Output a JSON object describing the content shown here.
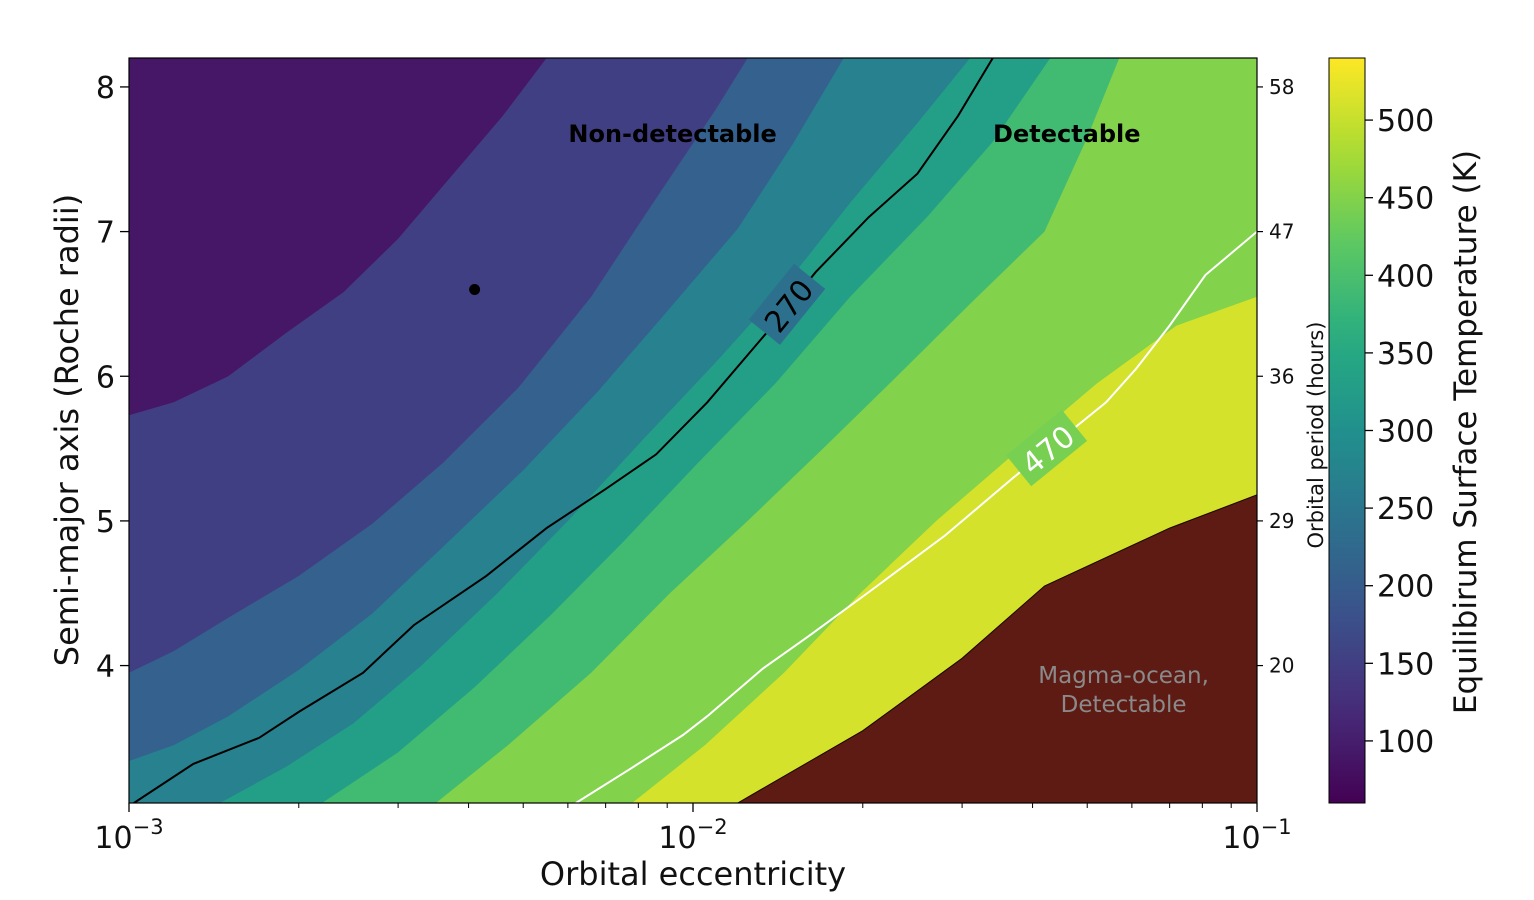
{
  "chart_data": {
    "type": "contour",
    "title": "",
    "xlabel": "Orbital eccentricity",
    "ylabel": "Semi-major axis (Roche radii)",
    "y2label": "Orbital period (hours)",
    "colorbar_label": "Equilibirum Surface Temperature (K)",
    "x_scale": "log",
    "xlim": [
      0.001,
      0.1
    ],
    "ylim": [
      3.05,
      8.2
    ],
    "x_ticks": [
      {
        "value": 0.001,
        "base": "10",
        "exp": "−3"
      },
      {
        "value": 0.01,
        "base": "10",
        "exp": "−2"
      },
      {
        "value": 0.1,
        "base": "10",
        "exp": "−1"
      }
    ],
    "y_ticks": [
      "4",
      "5",
      "6",
      "7",
      "8"
    ],
    "y2_ticks": [
      {
        "a": 4,
        "label": "20"
      },
      {
        "a": 5,
        "label": "29"
      },
      {
        "a": 6,
        "label": "36"
      },
      {
        "a": 7,
        "label": "47"
      },
      {
        "a": 8,
        "label": "58"
      }
    ],
    "colorbar_range": [
      60,
      540
    ],
    "colorbar_ticks": [
      "100",
      "150",
      "200",
      "250",
      "300",
      "350",
      "400",
      "450",
      "500"
    ],
    "colormap": "viridis",
    "magma_color": "#5e1b14",
    "levels": [
      60,
      120,
      180,
      240,
      300,
      360,
      420,
      480,
      540
    ],
    "boundaries": [
      {
        "level": 120,
        "points": [
          [
            0.001,
            5.73
          ],
          [
            0.0012,
            5.82
          ],
          [
            0.0015,
            6.0
          ],
          [
            0.0019,
            6.3
          ],
          [
            0.0024,
            6.58
          ],
          [
            0.003,
            6.95
          ],
          [
            0.0038,
            7.42
          ],
          [
            0.0046,
            7.8
          ],
          [
            0.0055,
            8.2
          ]
        ]
      },
      {
        "level": 180,
        "points": [
          [
            0.001,
            3.95
          ],
          [
            0.0012,
            4.1
          ],
          [
            0.0015,
            4.33
          ],
          [
            0.002,
            4.62
          ],
          [
            0.0027,
            4.98
          ],
          [
            0.0036,
            5.4
          ],
          [
            0.0049,
            5.92
          ],
          [
            0.0066,
            6.55
          ],
          [
            0.0085,
            7.2
          ],
          [
            0.011,
            7.85
          ],
          [
            0.0125,
            8.2
          ]
        ]
      },
      {
        "level": 240,
        "points": [
          [
            0.001,
            3.34
          ],
          [
            0.0012,
            3.45
          ],
          [
            0.0015,
            3.65
          ],
          [
            0.002,
            3.97
          ],
          [
            0.0027,
            4.36
          ],
          [
            0.0036,
            4.82
          ],
          [
            0.005,
            5.35
          ],
          [
            0.0068,
            5.9
          ],
          [
            0.009,
            6.45
          ],
          [
            0.012,
            7.02
          ],
          [
            0.015,
            7.6
          ],
          [
            0.0185,
            8.2
          ]
        ]
      },
      {
        "level": 300,
        "points": [
          [
            0.00145,
            3.05
          ],
          [
            0.0019,
            3.3
          ],
          [
            0.0025,
            3.6
          ],
          [
            0.0033,
            4.0
          ],
          [
            0.0045,
            4.5
          ],
          [
            0.006,
            5.0
          ],
          [
            0.0081,
            5.55
          ],
          [
            0.011,
            6.1
          ],
          [
            0.0145,
            6.62
          ],
          [
            0.019,
            7.2
          ],
          [
            0.025,
            7.75
          ],
          [
            0.031,
            8.2
          ]
        ]
      },
      {
        "level": 360,
        "points": [
          [
            0.0022,
            3.05
          ],
          [
            0.003,
            3.4
          ],
          [
            0.0041,
            3.85
          ],
          [
            0.0056,
            4.35
          ],
          [
            0.0075,
            4.85
          ],
          [
            0.0102,
            5.4
          ],
          [
            0.014,
            5.95
          ],
          [
            0.019,
            6.55
          ],
          [
            0.026,
            7.1
          ],
          [
            0.034,
            7.62
          ],
          [
            0.043,
            8.2
          ]
        ]
      },
      {
        "level": 420,
        "points": [
          [
            0.0035,
            3.05
          ],
          [
            0.0047,
            3.45
          ],
          [
            0.0066,
            3.95
          ],
          [
            0.0091,
            4.5
          ],
          [
            0.0125,
            5.0
          ],
          [
            0.017,
            5.5
          ],
          [
            0.023,
            6.0
          ],
          [
            0.031,
            6.5
          ],
          [
            0.042,
            7.0
          ],
          [
            0.05,
            7.65
          ],
          [
            0.057,
            8.2
          ]
        ]
      },
      {
        "level": 480,
        "points": [
          [
            0.0078,
            3.05
          ],
          [
            0.0105,
            3.45
          ],
          [
            0.0145,
            3.95
          ],
          [
            0.0198,
            4.5
          ],
          [
            0.027,
            5.0
          ],
          [
            0.038,
            5.5
          ],
          [
            0.052,
            5.95
          ],
          [
            0.072,
            6.35
          ],
          [
            0.1,
            6.55
          ]
        ]
      },
      {
        "level": 540,
        "points": [
          [
            0.012,
            3.05
          ],
          [
            0.02,
            3.55
          ],
          [
            0.03,
            4.05
          ],
          [
            0.042,
            4.55
          ],
          [
            0.07,
            4.95
          ],
          [
            0.1,
            5.18
          ]
        ]
      }
    ],
    "contour_lines": [
      {
        "label": "270",
        "color": "#000000",
        "points": [
          [
            0.00102,
            3.05
          ],
          [
            0.0013,
            3.32
          ],
          [
            0.0017,
            3.5
          ],
          [
            0.002,
            3.68
          ],
          [
            0.0026,
            3.95
          ],
          [
            0.0032,
            4.28
          ],
          [
            0.0043,
            4.62
          ],
          [
            0.0055,
            4.95
          ],
          [
            0.007,
            5.22
          ],
          [
            0.0086,
            5.46
          ],
          [
            0.0106,
            5.82
          ],
          [
            0.0135,
            6.3
          ],
          [
            0.0165,
            6.72
          ],
          [
            0.0205,
            7.1
          ],
          [
            0.025,
            7.4
          ],
          [
            0.0295,
            7.8
          ],
          [
            0.034,
            8.2
          ]
        ]
      },
      {
        "label": "470",
        "color": "#ffffff",
        "points": [
          [
            0.0062,
            3.05
          ],
          [
            0.0077,
            3.28
          ],
          [
            0.0096,
            3.52
          ],
          [
            0.0106,
            3.65
          ],
          [
            0.0133,
            3.98
          ],
          [
            0.016,
            4.2
          ],
          [
            0.0212,
            4.55
          ],
          [
            0.028,
            4.9
          ],
          [
            0.037,
            5.3
          ],
          [
            0.046,
            5.6
          ],
          [
            0.054,
            5.82
          ],
          [
            0.061,
            6.05
          ],
          [
            0.07,
            6.35
          ],
          [
            0.081,
            6.7
          ],
          [
            0.1,
            7.0
          ]
        ]
      }
    ],
    "point": {
      "x": 0.0041,
      "y": 6.6
    },
    "annotations": [
      {
        "text": "Non-detectable",
        "x": 0.0092,
        "y": 7.62,
        "color": "#000000",
        "bold": true
      },
      {
        "text": "Detectable",
        "x": 0.046,
        "y": 7.62,
        "color": "#000000",
        "bold": true
      },
      {
        "text": "Magma-ocean,",
        "x": 0.058,
        "y": 3.88,
        "color": "#8a8a8a",
        "bold": false
      },
      {
        "text": "Detectable",
        "x": 0.058,
        "y": 3.68,
        "color": "#8a8a8a",
        "bold": false
      }
    ]
  }
}
